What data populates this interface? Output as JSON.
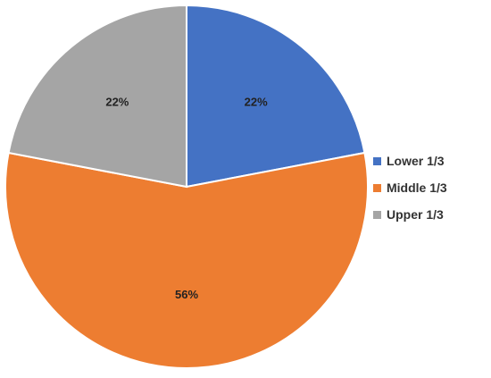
{
  "chart_data": {
    "type": "pie",
    "categories": [
      "Lower 1/3",
      "Middle 1/3",
      "Upper 1/3"
    ],
    "values": [
      22,
      56,
      22
    ],
    "data_labels": [
      "22%",
      "56%",
      "22%"
    ],
    "colors": [
      "#4472C4",
      "#ED7D31",
      "#A5A5A5"
    ],
    "start_angle_deg": 0,
    "direction": "clockwise",
    "slice_border_color": "#ffffff",
    "legend_position": "right",
    "title": ""
  },
  "legend": {
    "items": [
      {
        "label": "Lower 1/3",
        "color": "#4472C4"
      },
      {
        "label": "Middle 1/3",
        "color": "#ED7D31"
      },
      {
        "label": "Upper 1/3",
        "color": "#A5A5A5"
      }
    ]
  }
}
